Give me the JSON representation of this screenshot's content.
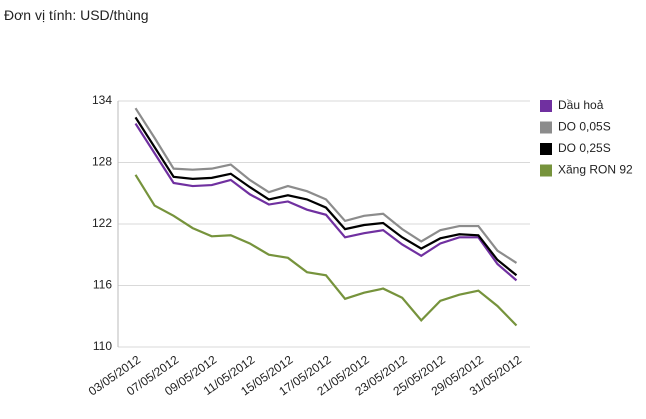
{
  "chart_data": {
    "type": "line",
    "title": "Đơn vị tính: USD/thùng",
    "categories": [
      "03/05/2012",
      null,
      "07/05/2012",
      null,
      "09/05/2012",
      null,
      "11/05/2012",
      null,
      "15/05/2012",
      null,
      "17/05/2012",
      null,
      "21/05/2012",
      null,
      "23/05/2012",
      null,
      "25/05/2012",
      null,
      "29/05/2012",
      null,
      "31/05/2012"
    ],
    "series": [
      {
        "name": "Dầu hoả",
        "color": "#7030a0",
        "values": [
          131.8,
          128.9,
          126,
          125.7,
          125.8,
          126.3,
          124.9,
          123.9,
          124.2,
          123.4,
          122.9,
          120.7,
          121.1,
          121.4,
          120,
          118.9,
          120.1,
          120.7,
          120.7,
          118.1,
          116.5
        ]
      },
      {
        "name": "DO 0,05S",
        "color": "#8c8c8c",
        "values": [
          133.3,
          130.4,
          127.4,
          127.3,
          127.4,
          127.8,
          126.3,
          125.1,
          125.7,
          125.2,
          124.4,
          122.3,
          122.8,
          123,
          121.5,
          120.3,
          121.4,
          121.8,
          121.8,
          119.4,
          118.2
        ]
      },
      {
        "name": "DO 0,25S",
        "color": "#000000",
        "values": [
          132.4,
          129.5,
          126.6,
          126.4,
          126.5,
          126.9,
          125.6,
          124.4,
          124.8,
          124.4,
          123.6,
          121.5,
          121.9,
          122.1,
          120.7,
          119.6,
          120.6,
          121,
          120.9,
          118.5,
          117
        ]
      },
      {
        "name": "Xăng RON 92",
        "color": "#76933c",
        "values": [
          126.8,
          123.8,
          122.8,
          121.6,
          120.8,
          120.9,
          120.1,
          119,
          118.7,
          117.3,
          117,
          114.7,
          115.3,
          115.7,
          114.8,
          112.6,
          114.5,
          115.1,
          115.5,
          114,
          112.1
        ]
      }
    ],
    "ylim": [
      110,
      134
    ],
    "yticks": [
      110,
      116,
      122,
      128,
      134
    ],
    "grid": true,
    "legend": "right"
  }
}
